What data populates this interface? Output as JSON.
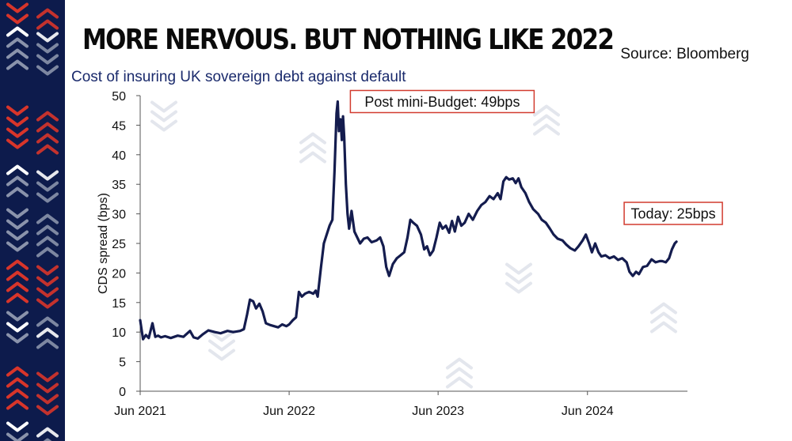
{
  "header": {
    "title": "MORE NERVOUS. BUT NOTHING LIKE 2022",
    "subtitle": "Cost of insuring UK sovereign debt against default",
    "source": "Source: Bloomberg"
  },
  "colors": {
    "navy": "#0d1b4c",
    "line": "#141c4e",
    "annotation_border": "#d23b2f",
    "chevron_red": "#d8352a",
    "chevron_white": "#ffffff",
    "chevron_grey": "#8a93ab"
  },
  "chart_data": {
    "type": "line",
    "title": "",
    "subtitle": "Cost of insuring UK sovereign debt against default",
    "xlabel": "",
    "ylabel": "CDS spread (bps)",
    "ylim": [
      0,
      50
    ],
    "yticks": [
      0,
      5,
      10,
      15,
      20,
      25,
      30,
      35,
      40,
      45,
      50
    ],
    "xlim": [
      "2021-06",
      "2025-02"
    ],
    "xticks": [
      {
        "value": "2021-06",
        "label": "Jun 2021"
      },
      {
        "value": "2022-06",
        "label": "Jun 2022"
      },
      {
        "value": "2023-06",
        "label": "Jun 2023"
      },
      {
        "value": "2024-06",
        "label": "Jun 2024"
      }
    ],
    "grid": false,
    "legend": "none",
    "series": [
      {
        "color": "#141c4e",
        "points": [
          [
            "2021-06-01",
            12.0
          ],
          [
            "2021-06-08",
            8.8
          ],
          [
            "2021-06-15",
            9.5
          ],
          [
            "2021-06-22",
            9.0
          ],
          [
            "2021-07-01",
            11.5
          ],
          [
            "2021-07-08",
            9.2
          ],
          [
            "2021-07-15",
            9.4
          ],
          [
            "2021-07-22",
            9.1
          ],
          [
            "2021-08-01",
            9.3
          ],
          [
            "2021-08-15",
            9.0
          ],
          [
            "2021-09-01",
            9.4
          ],
          [
            "2021-09-15",
            9.2
          ],
          [
            "2021-10-01",
            10.2
          ],
          [
            "2021-10-10",
            9.1
          ],
          [
            "2021-10-20",
            8.9
          ],
          [
            "2021-11-01",
            9.6
          ],
          [
            "2021-11-15",
            10.3
          ],
          [
            "2021-12-01",
            10.0
          ],
          [
            "2021-12-15",
            9.8
          ],
          [
            "2022-01-01",
            10.2
          ],
          [
            "2022-01-15",
            10.0
          ],
          [
            "2022-02-01",
            10.2
          ],
          [
            "2022-02-10",
            10.5
          ],
          [
            "2022-02-18",
            13.0
          ],
          [
            "2022-02-25",
            15.5
          ],
          [
            "2022-03-05",
            15.2
          ],
          [
            "2022-03-12",
            14.0
          ],
          [
            "2022-03-20",
            14.8
          ],
          [
            "2022-03-28",
            13.5
          ],
          [
            "2022-04-05",
            11.5
          ],
          [
            "2022-04-15",
            11.2
          ],
          [
            "2022-04-25",
            11.0
          ],
          [
            "2022-05-05",
            10.8
          ],
          [
            "2022-05-15",
            11.3
          ],
          [
            "2022-05-25",
            11.0
          ],
          [
            "2022-06-01",
            11.3
          ],
          [
            "2022-06-10",
            12.0
          ],
          [
            "2022-06-18",
            12.5
          ],
          [
            "2022-06-25",
            16.8
          ],
          [
            "2022-07-02",
            16.0
          ],
          [
            "2022-07-10",
            16.5
          ],
          [
            "2022-07-20",
            16.8
          ],
          [
            "2022-07-30",
            16.5
          ],
          [
            "2022-08-05",
            17.0
          ],
          [
            "2022-08-10",
            16.0
          ],
          [
            "2022-08-18",
            21.0
          ],
          [
            "2022-08-25",
            25.0
          ],
          [
            "2022-09-01",
            26.5
          ],
          [
            "2022-09-08",
            28.0
          ],
          [
            "2022-09-15",
            29.0
          ],
          [
            "2022-09-20",
            37.0
          ],
          [
            "2022-09-25",
            47.0
          ],
          [
            "2022-09-28",
            49.0
          ],
          [
            "2022-10-01",
            44.0
          ],
          [
            "2022-10-05",
            46.0
          ],
          [
            "2022-10-08",
            42.5
          ],
          [
            "2022-10-11",
            46.5
          ],
          [
            "2022-10-14",
            43.0
          ],
          [
            "2022-10-18",
            35.0
          ],
          [
            "2022-10-22",
            30.0
          ],
          [
            "2022-10-26",
            27.5
          ],
          [
            "2022-11-01",
            30.5
          ],
          [
            "2022-11-08",
            27.0
          ],
          [
            "2022-11-15",
            26.0
          ],
          [
            "2022-11-22",
            25.0
          ],
          [
            "2022-12-01",
            25.8
          ],
          [
            "2022-12-10",
            26.0
          ],
          [
            "2022-12-20",
            25.2
          ],
          [
            "2023-01-01",
            25.5
          ],
          [
            "2023-01-10",
            26.0
          ],
          [
            "2023-01-18",
            24.5
          ],
          [
            "2023-01-25",
            21.0
          ],
          [
            "2023-02-01",
            19.5
          ],
          [
            "2023-02-10",
            21.5
          ],
          [
            "2023-02-20",
            22.5
          ],
          [
            "2023-03-01",
            23.0
          ],
          [
            "2023-03-10",
            23.5
          ],
          [
            "2023-03-18",
            26.0
          ],
          [
            "2023-03-25",
            29.0
          ],
          [
            "2023-04-01",
            28.5
          ],
          [
            "2023-04-10",
            28.0
          ],
          [
            "2023-04-20",
            26.5
          ],
          [
            "2023-04-28",
            24.0
          ],
          [
            "2023-05-05",
            24.5
          ],
          [
            "2023-05-12",
            23.0
          ],
          [
            "2023-05-20",
            23.8
          ],
          [
            "2023-05-28",
            26.0
          ],
          [
            "2023-06-05",
            28.5
          ],
          [
            "2023-06-12",
            27.5
          ],
          [
            "2023-06-20",
            28.0
          ],
          [
            "2023-06-28",
            26.8
          ],
          [
            "2023-07-05",
            28.8
          ],
          [
            "2023-07-12",
            27.0
          ],
          [
            "2023-07-20",
            29.5
          ],
          [
            "2023-07-28",
            28.0
          ],
          [
            "2023-08-05",
            28.5
          ],
          [
            "2023-08-15",
            30.0
          ],
          [
            "2023-08-25",
            29.0
          ],
          [
            "2023-09-05",
            30.5
          ],
          [
            "2023-09-15",
            31.5
          ],
          [
            "2023-09-25",
            32.0
          ],
          [
            "2023-10-05",
            33.0
          ],
          [
            "2023-10-15",
            32.5
          ],
          [
            "2023-10-25",
            33.5
          ],
          [
            "2023-11-01",
            32.5
          ],
          [
            "2023-11-08",
            35.5
          ],
          [
            "2023-11-15",
            36.2
          ],
          [
            "2023-11-22",
            35.8
          ],
          [
            "2023-12-01",
            36.0
          ],
          [
            "2023-12-08",
            35.2
          ],
          [
            "2023-12-15",
            36.0
          ],
          [
            "2023-12-22",
            34.5
          ],
          [
            "2024-01-01",
            33.5
          ],
          [
            "2024-01-10",
            32.0
          ],
          [
            "2024-01-20",
            30.8
          ],
          [
            "2024-02-01",
            30.0
          ],
          [
            "2024-02-10",
            29.0
          ],
          [
            "2024-02-20",
            28.5
          ],
          [
            "2024-03-01",
            27.5
          ],
          [
            "2024-03-10",
            26.5
          ],
          [
            "2024-03-20",
            25.8
          ],
          [
            "2024-04-01",
            25.5
          ],
          [
            "2024-04-10",
            24.8
          ],
          [
            "2024-04-20",
            24.2
          ],
          [
            "2024-05-01",
            23.8
          ],
          [
            "2024-05-10",
            24.5
          ],
          [
            "2024-05-20",
            25.5
          ],
          [
            "2024-05-28",
            26.5
          ],
          [
            "2024-06-05",
            25.0
          ],
          [
            "2024-06-12",
            23.5
          ],
          [
            "2024-06-20",
            25.0
          ],
          [
            "2024-06-28",
            23.5
          ],
          [
            "2024-07-05",
            22.8
          ],
          [
            "2024-07-15",
            23.0
          ],
          [
            "2024-07-25",
            22.5
          ],
          [
            "2024-08-05",
            22.8
          ],
          [
            "2024-08-15",
            22.2
          ],
          [
            "2024-08-25",
            22.5
          ],
          [
            "2024-09-05",
            21.8
          ],
          [
            "2024-09-12",
            20.2
          ],
          [
            "2024-09-20",
            19.5
          ],
          [
            "2024-09-28",
            20.2
          ],
          [
            "2024-10-05",
            19.8
          ],
          [
            "2024-10-15",
            21.0
          ],
          [
            "2024-10-25",
            21.2
          ],
          [
            "2024-11-05",
            22.3
          ],
          [
            "2024-11-15",
            21.8
          ],
          [
            "2024-11-25",
            22.0
          ],
          [
            "2024-12-01",
            22.0
          ],
          [
            "2024-12-10",
            21.8
          ],
          [
            "2024-12-18",
            22.5
          ],
          [
            "2024-12-25",
            24.0
          ],
          [
            "2025-01-01",
            25.0
          ],
          [
            "2025-01-05",
            25.3
          ]
        ]
      }
    ],
    "annotations": [
      {
        "text": "Post mini-Budget: 49bps",
        "x": "2022-09-28",
        "y": 49
      },
      {
        "text": "Today: 25bps",
        "x": "2025-01-05",
        "y": 25
      }
    ]
  }
}
